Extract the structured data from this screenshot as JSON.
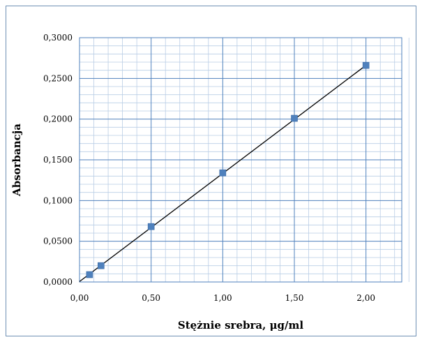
{
  "chart_data": {
    "type": "scatter",
    "title": "",
    "xlabel": "Stężnie srebra, μg/ml",
    "ylabel": "Absorbancja",
    "xlim": [
      0,
      2.25
    ],
    "ylim": [
      0,
      0.3
    ],
    "x_ticks": [
      0,
      0.5,
      1.0,
      1.5,
      2.0
    ],
    "x_tick_labels": [
      "0,00",
      "0,50",
      "1,00",
      "1,50",
      "2,00"
    ],
    "y_ticks": [
      0,
      0.05,
      0.1,
      0.15,
      0.2,
      0.25,
      0.3
    ],
    "y_tick_labels": [
      "0,0000",
      "0,0500",
      "0,1000",
      "0,1500",
      "0,2000",
      "0,2500",
      "0,3000"
    ],
    "grid": true,
    "series": [
      {
        "x": [
          0.07,
          0.15,
          0.5,
          1.0,
          1.5,
          2.0
        ],
        "y": [
          0.009,
          0.02,
          0.068,
          0.134,
          0.201,
          0.266
        ],
        "marker": "square",
        "color": "#4f81bd"
      }
    ],
    "trendline": {
      "type": "linear",
      "color": "#000000",
      "x_range": [
        0,
        2.0
      ],
      "slope": 0.1328,
      "intercept": 0.0005
    },
    "colors": {
      "major_grid": "#4f81bd",
      "minor_grid": "#b9cde5",
      "frame": "#6e8fb3"
    }
  }
}
